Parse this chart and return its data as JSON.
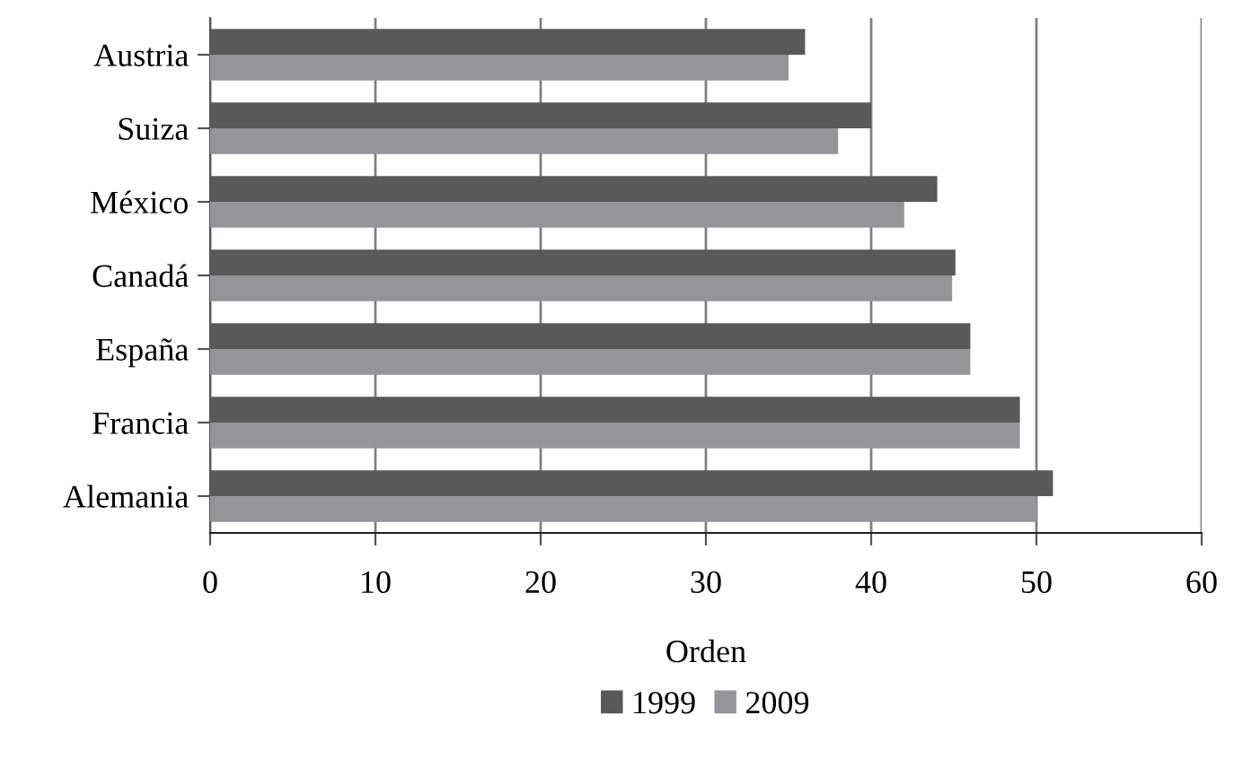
{
  "chart_data": {
    "type": "bar",
    "orientation": "horizontal",
    "xlabel": "Orden",
    "categories": [
      "Austria",
      "Suiza",
      "México",
      "Canadá",
      "España",
      "Francia",
      "Alemania"
    ],
    "series": [
      {
        "name": "1999",
        "color": "#58595b",
        "values": [
          36,
          40,
          44,
          45.1,
          46,
          49,
          51
        ]
      },
      {
        "name": "2009",
        "color": "#939598",
        "values": [
          35,
          38,
          42,
          44.9,
          46,
          49,
          50
        ]
      }
    ],
    "xlim": [
      0,
      60
    ],
    "xticks": [
      0,
      10,
      20,
      30,
      40,
      50,
      60
    ],
    "grid": "x",
    "legend": "bottom"
  }
}
